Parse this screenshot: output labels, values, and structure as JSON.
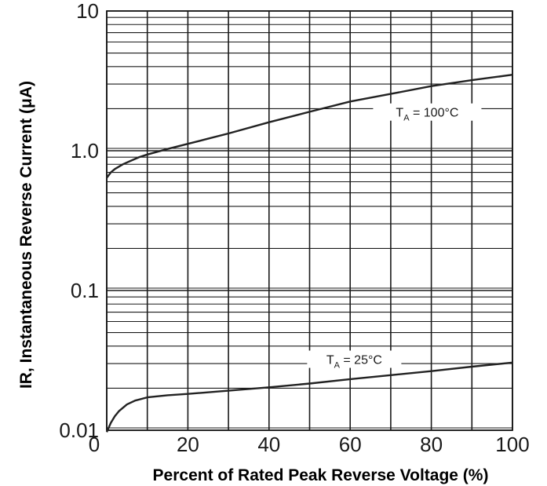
{
  "chart_data": {
    "type": "line",
    "xlabel": "Percent of Rated Peak Reverse Voltage (%)",
    "ylabel": "IR, Instantaneous Reverse Current (μA)",
    "xlim": [
      0,
      100
    ],
    "ylim": [
      0.01,
      10
    ],
    "yscale": "log",
    "grid": true,
    "x_ticks": [
      {
        "value": 0,
        "label": "0"
      },
      {
        "value": 20,
        "label": "20"
      },
      {
        "value": 40,
        "label": "40"
      },
      {
        "value": 60,
        "label": "60"
      },
      {
        "value": 80,
        "label": "80"
      },
      {
        "value": 100,
        "label": "100"
      }
    ],
    "y_ticks": [
      {
        "value": 0.01,
        "label": "0.01"
      },
      {
        "value": 0.1,
        "label": "0.1"
      },
      {
        "value": 1,
        "label": "1.0"
      },
      {
        "value": 10,
        "label": "10"
      }
    ],
    "series": [
      {
        "label_main": "T",
        "label_sub": "A",
        "label_rest": " = 100°C",
        "color": "#222222",
        "x": [
          0,
          1,
          2,
          4,
          6,
          8,
          10,
          15,
          20,
          25,
          30,
          40,
          50,
          60,
          70,
          80,
          90,
          100
        ],
        "y": [
          0.64,
          0.7,
          0.74,
          0.8,
          0.85,
          0.9,
          0.94,
          1.03,
          1.12,
          1.22,
          1.33,
          1.6,
          1.9,
          2.25,
          2.55,
          2.9,
          3.2,
          3.5
        ]
      },
      {
        "label_main": "T",
        "label_sub": "A",
        "label_rest": " = 25°C",
        "color": "#222222",
        "x": [
          0,
          1,
          2,
          3,
          5,
          7,
          10,
          15,
          20,
          30,
          40,
          50,
          60,
          70,
          80,
          90,
          100
        ],
        "y": [
          0.0097,
          0.0113,
          0.0126,
          0.0137,
          0.0153,
          0.0163,
          0.0172,
          0.0178,
          0.0182,
          0.0192,
          0.0203,
          0.0216,
          0.0232,
          0.0248,
          0.0265,
          0.0285,
          0.0305
        ]
      }
    ]
  }
}
